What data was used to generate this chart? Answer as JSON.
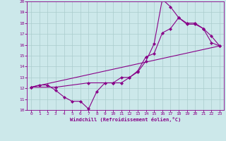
{
  "bg_color": "#cce8ea",
  "grid_color": "#aacccc",
  "line_color": "#880088",
  "xlabel": "Windchill (Refroidissement éolien,°C)",
  "xlim": [
    -0.5,
    23.5
  ],
  "ylim": [
    10,
    20
  ],
  "xticks": [
    0,
    1,
    2,
    3,
    4,
    5,
    6,
    7,
    8,
    9,
    10,
    11,
    12,
    13,
    14,
    15,
    16,
    17,
    18,
    19,
    20,
    21,
    22,
    23
  ],
  "yticks": [
    10,
    11,
    12,
    13,
    14,
    15,
    16,
    17,
    18,
    19,
    20
  ],
  "line1_x": [
    0,
    1,
    2,
    3,
    4,
    5,
    6,
    7,
    8,
    9,
    10,
    11,
    12,
    13,
    14,
    15,
    16,
    17,
    18,
    19,
    20,
    21,
    22,
    23
  ],
  "line1_y": [
    12.1,
    12.3,
    12.3,
    11.8,
    11.2,
    10.8,
    10.8,
    10.1,
    11.7,
    12.5,
    12.5,
    12.5,
    13.0,
    13.6,
    14.9,
    15.2,
    17.1,
    17.5,
    18.5,
    18.0,
    18.0,
    17.5,
    16.2,
    15.9
  ],
  "line2_x": [
    0,
    3,
    7,
    10,
    11,
    12,
    13,
    14,
    15,
    16,
    17,
    18,
    19,
    20,
    21,
    22,
    23
  ],
  "line2_y": [
    12.1,
    12.1,
    12.5,
    12.5,
    13.0,
    13.0,
    13.5,
    14.5,
    16.1,
    20.2,
    19.5,
    18.5,
    17.9,
    17.9,
    17.5,
    16.8,
    15.9
  ],
  "line3_x": [
    0,
    23
  ],
  "line3_y": [
    12.1,
    15.9
  ]
}
